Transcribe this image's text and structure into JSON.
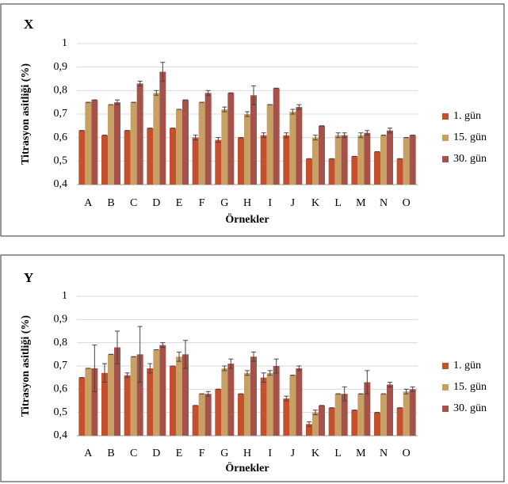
{
  "chart_data": [
    {
      "type": "bar",
      "title": "X",
      "x_label": "Örnekler",
      "y_label": "Titrasyon asitliği (%)",
      "categories": [
        "A",
        "B",
        "C",
        "D",
        "E",
        "F",
        "G",
        "H",
        "I",
        "J",
        "K",
        "L",
        "M",
        "N",
        "O"
      ],
      "series": [
        {
          "name": "1. gün",
          "color": "#c4502e",
          "values": [
            0.63,
            0.61,
            0.63,
            0.64,
            0.64,
            0.6,
            0.59,
            0.6,
            0.61,
            0.61,
            0.51,
            0.51,
            0.52,
            0.54,
            0.51
          ],
          "errors": [
            0,
            0,
            0,
            0,
            0,
            0.01,
            0.01,
            0,
            0.01,
            0.01,
            0,
            0,
            0,
            0,
            0
          ]
        },
        {
          "name": "15. gün",
          "color": "#c9a064",
          "values": [
            0.75,
            0.74,
            0.75,
            0.79,
            0.72,
            0.75,
            0.72,
            0.7,
            0.74,
            0.71,
            0.6,
            0.61,
            0.61,
            0.61,
            0.6
          ],
          "errors": [
            0,
            0,
            0,
            0.01,
            0,
            0,
            0.01,
            0.01,
            0,
            0.01,
            0.01,
            0.01,
            0.01,
            0,
            0
          ]
        },
        {
          "name": "30. gün",
          "color": "#a5534a",
          "values": [
            0.76,
            0.75,
            0.83,
            0.88,
            0.76,
            0.79,
            0.79,
            0.78,
            0.81,
            0.73,
            0.65,
            0.61,
            0.62,
            0.63,
            0.61
          ],
          "errors": [
            0,
            0.01,
            0.01,
            0.04,
            0,
            0.01,
            0,
            0.04,
            0,
            0.01,
            0,
            0.01,
            0.01,
            0.01,
            0
          ]
        }
      ],
      "ylim": [
        0.4,
        1
      ],
      "yticks": [
        {
          "value": 0.4,
          "label": "0,4"
        },
        {
          "value": 0.5,
          "label": "0,5"
        },
        {
          "value": 0.6,
          "label": "0,6"
        },
        {
          "value": 0.7,
          "label": "0,7"
        },
        {
          "value": 0.8,
          "label": "0,8"
        },
        {
          "value": 0.9,
          "label": "0,9"
        },
        1
      ],
      "grid": true,
      "legend": "right"
    },
    {
      "type": "bar",
      "title": "Y",
      "x_label": "Örnekler",
      "y_label": "Titrasyon asitliği (%)",
      "categories": [
        "A",
        "B",
        "C",
        "D",
        "E",
        "F",
        "G",
        "H",
        "I",
        "J",
        "K",
        "L",
        "M",
        "N",
        "O"
      ],
      "series": [
        {
          "name": "1. gün",
          "color": "#c4502e",
          "values": [
            0.65,
            0.67,
            0.66,
            0.69,
            0.7,
            0.53,
            0.6,
            0.58,
            0.65,
            0.56,
            0.45,
            0.52,
            0.51,
            0.5,
            0.52
          ],
          "errors": [
            0,
            0.04,
            0.01,
            0.02,
            0,
            0,
            0,
            0,
            0.02,
            0.01,
            0.01,
            0,
            0,
            0,
            0
          ]
        },
        {
          "name": "15. gün",
          "color": "#c9a064",
          "values": [
            0.69,
            0.75,
            0.74,
            0.77,
            0.74,
            0.58,
            0.69,
            0.67,
            0.67,
            0.66,
            0.5,
            0.58,
            0.58,
            0.58,
            0.59
          ],
          "errors": [
            0,
            0,
            0,
            0,
            0.02,
            0,
            0.01,
            0.01,
            0.01,
            0,
            0.01,
            0,
            0,
            0,
            0.01
          ]
        },
        {
          "name": "30. gün",
          "color": "#a5534a",
          "values": [
            0.69,
            0.78,
            0.75,
            0.79,
            0.75,
            0.58,
            0.71,
            0.74,
            0.7,
            0.69,
            0.53,
            0.58,
            0.63,
            0.62,
            0.6
          ],
          "errors": [
            0.1,
            0.07,
            0.12,
            0.01,
            0.06,
            0.01,
            0.02,
            0.02,
            0.03,
            0.01,
            0,
            0.03,
            0.05,
            0.01,
            0.01
          ]
        }
      ],
      "ylim": [
        0.4,
        1
      ],
      "yticks": [
        {
          "value": 0.4,
          "label": "0,4"
        },
        {
          "value": 0.5,
          "label": "0,5"
        },
        {
          "value": 0.6,
          "label": "0,6"
        },
        {
          "value": 0.7,
          "label": "0,7"
        },
        {
          "value": 0.8,
          "label": "0,8"
        },
        {
          "value": 0.9,
          "label": "0,9"
        },
        1
      ],
      "grid": true,
      "legend": "right"
    }
  ]
}
